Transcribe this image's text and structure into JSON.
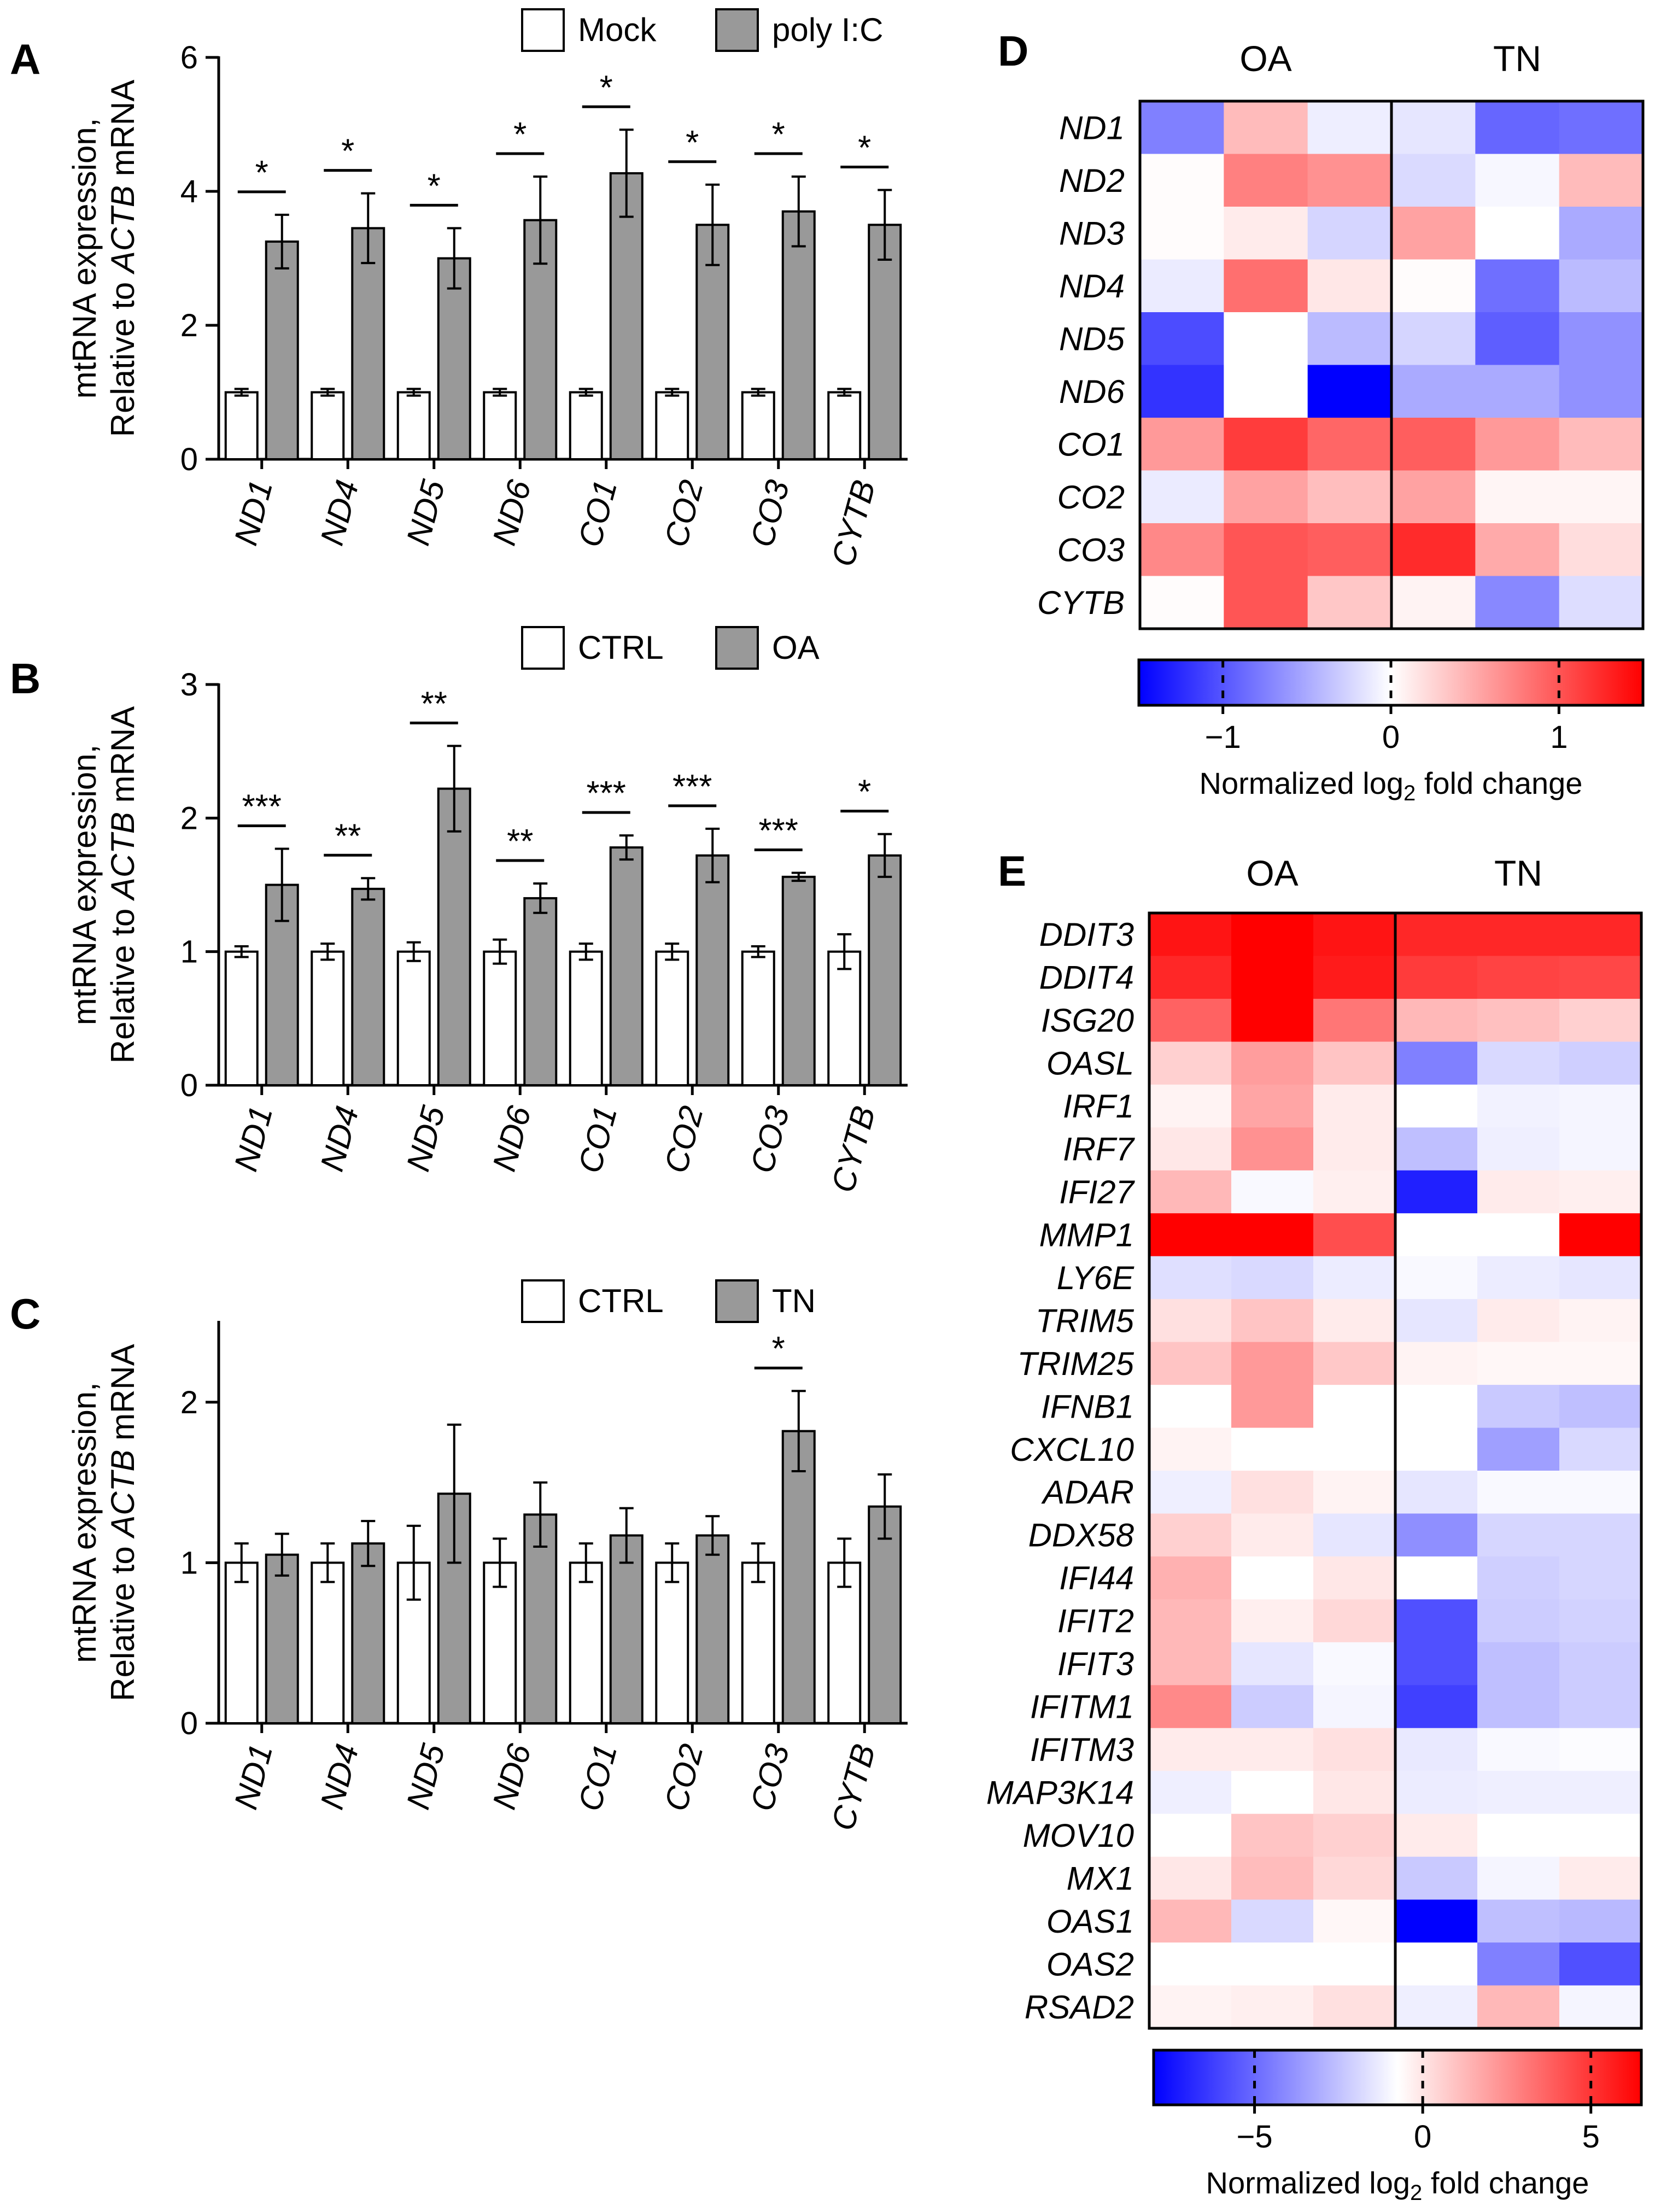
{
  "panel_labels": {
    "A": "A",
    "B": "B",
    "C": "C",
    "D": "D",
    "E": "E"
  },
  "colors": {
    "control_bar": "#ffffff",
    "treatment_bar": "#999999",
    "axis": "#000000",
    "heatmap_low": "#0000ff",
    "heatmap_mid": "#ffffff",
    "heatmap_high": "#ff0000"
  },
  "chart_data": [
    {
      "type": "bar",
      "panel": "A",
      "ylabel_line1": "mtRNA expression,",
      "ylabel_line2_pre": "Relative to ",
      "ylabel_line2_gene": "ACTB",
      "ylabel_line2_post": " mRNA",
      "ylim": [
        0,
        6
      ],
      "yticks": [
        0,
        2,
        4,
        6
      ],
      "categories": [
        "ND1",
        "ND4",
        "ND5",
        "ND6",
        "CO1",
        "CO2",
        "CO3",
        "CYTB"
      ],
      "series": [
        {
          "name": "Mock",
          "values": [
            1,
            1,
            1,
            1,
            1,
            1,
            1,
            1
          ],
          "errors": [
            0.05,
            0.05,
            0.05,
            0.05,
            0.05,
            0.05,
            0.05,
            0.05
          ]
        },
        {
          "name": "poly I:C",
          "values": [
            3.25,
            3.45,
            3.0,
            3.57,
            4.27,
            3.5,
            3.7,
            3.5
          ],
          "errors": [
            0.4,
            0.52,
            0.45,
            0.65,
            0.65,
            0.6,
            0.52,
            0.52
          ]
        }
      ],
      "significance": [
        "*",
        "*",
        "*",
        "*",
        "*",
        "*",
        "*",
        "*"
      ]
    },
    {
      "type": "bar",
      "panel": "B",
      "ylabel_line1": "mtRNA expression,",
      "ylabel_line2_pre": "Relative to ",
      "ylabel_line2_gene": "ACTB",
      "ylabel_line2_post": " mRNA",
      "ylim": [
        0,
        3
      ],
      "yticks": [
        0,
        1,
        2,
        3
      ],
      "categories": [
        "ND1",
        "ND4",
        "ND5",
        "ND6",
        "CO1",
        "CO2",
        "CO3",
        "CYTB"
      ],
      "series": [
        {
          "name": "CTRL",
          "values": [
            1,
            1,
            1,
            1,
            1,
            1,
            1,
            1
          ],
          "errors": [
            0.04,
            0.06,
            0.07,
            0.09,
            0.06,
            0.06,
            0.04,
            0.13
          ]
        },
        {
          "name": "OA",
          "values": [
            1.5,
            1.47,
            2.22,
            1.4,
            1.78,
            1.72,
            1.56,
            1.72
          ],
          "errors": [
            0.27,
            0.08,
            0.32,
            0.11,
            0.09,
            0.2,
            0.03,
            0.16
          ]
        }
      ],
      "significance": [
        "***",
        "**",
        "**",
        "**",
        "***",
        "***",
        "***",
        "*"
      ]
    },
    {
      "type": "bar",
      "panel": "C",
      "ylabel_line1": "mtRNA expression,",
      "ylabel_line2_pre": "Relative to ",
      "ylabel_line2_gene": "ACTB",
      "ylabel_line2_post": " mRNA",
      "ylim": [
        0,
        2.5
      ],
      "yticks": [
        0,
        1,
        2
      ],
      "categories": [
        "ND1",
        "ND4",
        "ND5",
        "ND6",
        "CO1",
        "CO2",
        "CO3",
        "CYTB"
      ],
      "series": [
        {
          "name": "CTRL",
          "values": [
            1,
            1,
            1,
            1,
            1,
            1,
            1,
            1
          ],
          "errors": [
            0.12,
            0.12,
            0.23,
            0.15,
            0.12,
            0.12,
            0.12,
            0.15
          ]
        },
        {
          "name": "TN",
          "values": [
            1.05,
            1.12,
            1.43,
            1.3,
            1.17,
            1.17,
            1.82,
            1.35
          ],
          "errors": [
            0.13,
            0.14,
            0.43,
            0.2,
            0.17,
            0.12,
            0.25,
            0.2
          ]
        }
      ],
      "significance": [
        "",
        "",
        "",
        "",
        "",
        "",
        "*",
        ""
      ]
    },
    {
      "type": "heatmap",
      "panel": "D",
      "groups": [
        "OA",
        "TN"
      ],
      "replicates_per_group": 3,
      "rows": [
        "ND1",
        "ND2",
        "ND3",
        "ND4",
        "ND5",
        "ND6",
        "CO1",
        "CO2",
        "CO3",
        "CYTB"
      ],
      "values": [
        [
          -0.75,
          0.4,
          -0.1,
          -0.15,
          -0.9,
          -0.85
        ],
        [
          0.02,
          0.75,
          0.65,
          -0.22,
          -0.05,
          0.4
        ],
        [
          0.02,
          0.12,
          -0.25,
          0.55,
          0.0,
          -0.5
        ],
        [
          -0.12,
          0.85,
          0.14,
          0.02,
          -0.85,
          -0.4
        ],
        [
          -1.05,
          0.0,
          -0.4,
          -0.25,
          -0.95,
          -0.65
        ],
        [
          -1.2,
          0.0,
          -1.5,
          -0.5,
          -0.5,
          -0.65
        ],
        [
          0.6,
          1.15,
          0.9,
          0.95,
          0.6,
          0.4
        ],
        [
          -0.12,
          0.55,
          0.38,
          0.55,
          0.06,
          0.06
        ],
        [
          0.7,
          1.0,
          0.95,
          1.25,
          0.5,
          0.2
        ],
        [
          0.02,
          1.0,
          0.33,
          0.07,
          -0.7,
          -0.2
        ]
      ],
      "colorbar": {
        "min": -1.5,
        "max": 1.5,
        "ticks": [
          -1,
          0,
          1
        ],
        "tick_labels": [
          "−1",
          "0",
          "1"
        ],
        "label_pre": "Normalized log",
        "label_sub": "2",
        "label_post": " fold change"
      }
    },
    {
      "type": "heatmap",
      "panel": "E",
      "groups": [
        "OA",
        "TN"
      ],
      "replicates_per_group": 3,
      "rows": [
        "DDIT3",
        "DDIT4",
        "ISG20",
        "OASL",
        "IRF1",
        "IRF7",
        "IFI27",
        "MMP1",
        "LY6E",
        "TRIM5",
        "TRIM25",
        "IFNB1",
        "CXCL10",
        "ADAR",
        "DDX58",
        "IFI44",
        "IFIT2",
        "IFIT3",
        "IFITM1",
        "IFITM3",
        "MAP3K14",
        "MOV10",
        "MX1",
        "OAS1",
        "OAS2",
        "RSAD2"
      ],
      "values": [
        [
          6.0,
          7.5,
          6.0,
          5.5,
          5.5,
          5.5
        ],
        [
          5.5,
          6.7,
          5.8,
          5.0,
          4.8,
          4.7
        ],
        [
          4.0,
          6.7,
          3.5,
          1.8,
          1.6,
          1.2
        ],
        [
          1.2,
          2.5,
          1.5,
          -4.0,
          -1.2,
          -1.5
        ],
        [
          0.3,
          2.3,
          0.5,
          0.0,
          -0.4,
          -0.3
        ],
        [
          0.6,
          2.8,
          0.5,
          -2.0,
          -0.5,
          -0.3
        ],
        [
          1.8,
          -0.2,
          0.4,
          -7.0,
          0.5,
          0.4
        ],
        [
          7.0,
          8.0,
          4.5,
          0.0,
          0.0,
          7.0
        ],
        [
          -1.0,
          -1.2,
          -0.6,
          -0.2,
          -0.6,
          -0.8
        ],
        [
          0.8,
          1.5,
          0.5,
          -0.8,
          0.5,
          0.3
        ],
        [
          1.5,
          2.6,
          1.4,
          0.3,
          0.2,
          0.2
        ],
        [
          0.0,
          2.6,
          0.0,
          0.0,
          -1.7,
          -2.0
        ],
        [
          0.3,
          0.0,
          0.0,
          0.0,
          -3.0,
          -1.2
        ],
        [
          -0.5,
          0.8,
          0.3,
          -0.8,
          -0.2,
          -0.2
        ],
        [
          1.2,
          0.5,
          -0.8,
          -3.5,
          -1.3,
          -1.3
        ],
        [
          2.0,
          0.0,
          0.6,
          0.0,
          -1.5,
          -1.3
        ],
        [
          1.8,
          0.4,
          1.0,
          -5.5,
          -1.6,
          -1.4
        ],
        [
          1.8,
          -0.8,
          -0.2,
          -5.5,
          -2.0,
          -1.6
        ],
        [
          3.0,
          -1.6,
          -0.3,
          -6.0,
          -2.0,
          -1.6
        ],
        [
          0.5,
          0.5,
          0.8,
          -0.7,
          -0.2,
          -0.1
        ],
        [
          -0.5,
          0.0,
          0.6,
          -0.6,
          -0.5,
          -0.5
        ],
        [
          0.0,
          1.5,
          1.2,
          0.5,
          0.0,
          0.0
        ],
        [
          0.6,
          1.7,
          1.0,
          -1.7,
          -0.3,
          0.5
        ],
        [
          1.8,
          -1.2,
          0.2,
          -8.0,
          -2.0,
          -2.2
        ],
        [
          0.0,
          0.0,
          0.0,
          0.0,
          -4.0,
          -5.5
        ],
        [
          0.3,
          0.4,
          0.8,
          -0.5,
          1.8,
          -0.3
        ]
      ],
      "colorbar": {
        "min": -8,
        "max": 6.5,
        "ticks": [
          -5,
          0,
          5
        ],
        "tick_labels": [
          "−5",
          "0",
          "5"
        ],
        "label_pre": "Normalized log",
        "label_sub": "2",
        "label_post": " fold change"
      }
    }
  ]
}
